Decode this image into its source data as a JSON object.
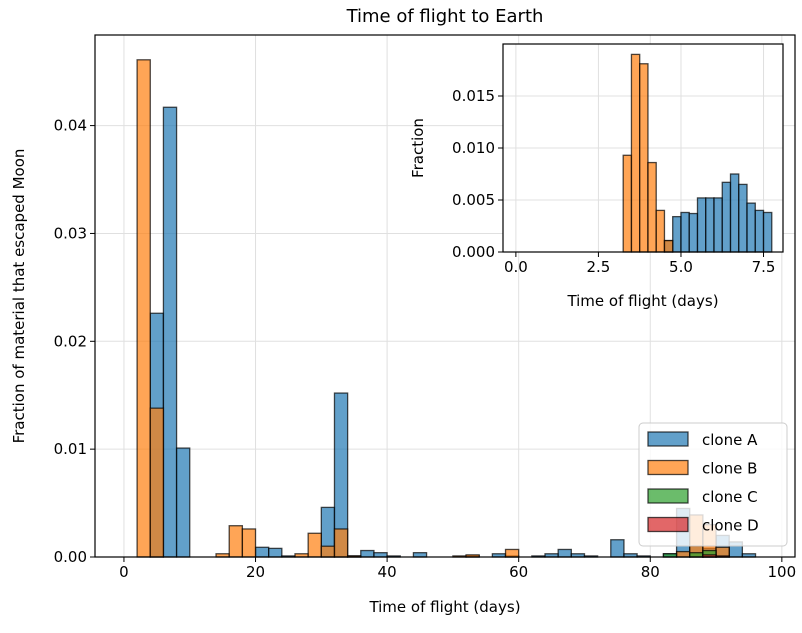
{
  "chart_data": [
    {
      "type": "bar",
      "subtype": "histogram",
      "title": "Time of flight to Earth",
      "xlabel": "Time of flight (days)",
      "ylabel": "Fraction of material that escaped Moon",
      "xlim": [
        -4.4,
        102
      ],
      "ylim": [
        0,
        0.0484
      ],
      "xticks": [
        "0",
        "20",
        "40",
        "60",
        "80",
        "100"
      ],
      "xtick_values": [
        0,
        20,
        40,
        60,
        80,
        100
      ],
      "yticks": [
        "0.00",
        "0.01",
        "0.02",
        "0.03",
        "0.04"
      ],
      "ytick_values": [
        0,
        0.01,
        0.02,
        0.03,
        0.04
      ],
      "grid": true,
      "legend_position": "lower-right",
      "bin_start": 0,
      "bin_width": 2,
      "series": [
        {
          "name": "clone A",
          "color": "#1f77b4",
          "values": [
            0,
            0,
            0.0226,
            0.0417,
            0.0101,
            0,
            0,
            0,
            0,
            0,
            0.0009,
            0.0008,
            0.0001,
            0,
            0,
            0.0046,
            0.0152,
            0.0001,
            0.0006,
            0.0004,
            0.0001,
            0,
            0.0004,
            0,
            0,
            0,
            0.0001,
            0,
            0.0003,
            0.0001,
            0,
            0.0001,
            0.0003,
            0.0007,
            0.0003,
            0.0001,
            0,
            0.0016,
            0.0003,
            0.0001,
            0,
            0.0003,
            0.0045,
            0.001,
            0.0008,
            0.002,
            0.0014,
            0.0003,
            0,
            0
          ]
        },
        {
          "name": "clone B",
          "color": "#ff7f0e",
          "values": [
            0,
            0.0461,
            0.0138,
            0,
            0,
            0,
            0,
            0.0003,
            0.0029,
            0.0026,
            0,
            0,
            0,
            0.0003,
            0.0022,
            0.001,
            0.0026,
            0.0001,
            0,
            0,
            0,
            0,
            0,
            0,
            0,
            0.0001,
            0.0002,
            0,
            0,
            0.0007,
            0,
            0,
            0,
            0,
            0,
            0,
            0,
            0,
            0,
            0,
            0,
            0,
            0.0005,
            0.0039,
            0.003,
            0.0009,
            0,
            0,
            0,
            0
          ]
        },
        {
          "name": "clone C",
          "color": "#2ca02c",
          "values": [
            0,
            0,
            0,
            0,
            0,
            0,
            0,
            0,
            0,
            0,
            0,
            0,
            0,
            0,
            0,
            0,
            0,
            0,
            0,
            0,
            0,
            0,
            0,
            0,
            0,
            0,
            0,
            0,
            0,
            0,
            0,
            0,
            0,
            0,
            0,
            0,
            0,
            0,
            0,
            0,
            0,
            0.0003,
            0,
            0.0004,
            0.0006,
            0,
            0,
            0,
            0,
            0
          ]
        },
        {
          "name": "clone D",
          "color": "#d62728",
          "values": [
            0,
            0,
            0,
            0,
            0,
            0,
            0,
            0,
            0,
            0,
            0,
            0,
            0,
            0,
            0,
            0,
            0,
            0,
            0,
            0,
            0,
            0,
            0,
            0,
            0,
            0,
            0,
            0,
            0,
            0,
            0,
            0,
            0,
            0,
            0,
            0,
            0,
            0,
            0,
            0,
            0,
            0,
            0,
            0,
            0.0002,
            0.0001,
            0,
            0,
            0,
            0
          ]
        }
      ]
    },
    {
      "type": "bar",
      "subtype": "histogram-inset",
      "title": "",
      "xlabel": "Time of flight (days)",
      "ylabel": "Fraction",
      "xlim": [
        -0.39,
        8.09
      ],
      "ylim": [
        0,
        0.02
      ],
      "xticks": [
        "0.0",
        "2.5",
        "5.0",
        "7.5"
      ],
      "xtick_values": [
        0,
        2.5,
        5,
        7.5
      ],
      "yticks": [
        "0.000",
        "0.005",
        "0.010",
        "0.015"
      ],
      "ytick_values": [
        0,
        0.005,
        0.01,
        0.015
      ],
      "grid": true,
      "bin_start": 0,
      "bin_width": 0.25,
      "series": [
        {
          "name": "clone A",
          "color": "#1f77b4",
          "values": [
            0,
            0,
            0,
            0,
            0,
            0,
            0,
            0,
            0,
            0,
            0,
            0,
            0,
            0,
            0,
            0,
            0,
            0,
            0.0011,
            0.0034,
            0.0038,
            0.0037,
            0.0052,
            0.0052,
            0.0052,
            0.0067,
            0.0075,
            0.0065,
            0.0047,
            0.004,
            0.0038,
            0
          ]
        },
        {
          "name": "clone B",
          "color": "#ff7f0e",
          "values": [
            0,
            0,
            0,
            0,
            0,
            0,
            0,
            0,
            0,
            0,
            0,
            0,
            0,
            0.0093,
            0.019,
            0.0181,
            0.0086,
            0.004,
            0.0011,
            0,
            0,
            0,
            0,
            0,
            0,
            0,
            0,
            0,
            0,
            0,
            0,
            0
          ]
        }
      ]
    }
  ]
}
